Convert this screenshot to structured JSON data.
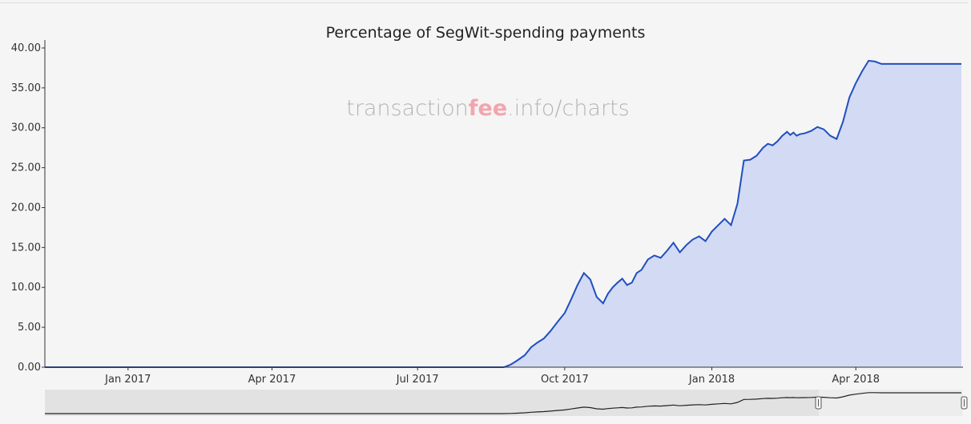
{
  "watermark": {
    "prefix": "transaction",
    "accent": "fee",
    "suffix": ".info/charts"
  },
  "colors": {
    "line": "#1f4fbf",
    "area": "#d3daf3",
    "accent": "#f2a5ae",
    "grid": "#dcdcdc"
  },
  "chart_data": {
    "type": "area",
    "title": "Percentage of SegWit-spending payments",
    "xlabel": "",
    "ylabel": "",
    "y_ticks": [
      "0.00",
      "5.00",
      "10.00",
      "15.00",
      "20.00",
      "25.00",
      "30.00",
      "35.00",
      "40.00"
    ],
    "ylim": [
      0,
      41
    ],
    "xlim": [
      "2016-11-10",
      "2018-06-07"
    ],
    "x_ticks": [
      {
        "date": "2017-01-01",
        "label": "Jan 2017"
      },
      {
        "date": "2017-04-01",
        "label": "Apr 2017"
      },
      {
        "date": "2017-07-01",
        "label": "Jul 2017"
      },
      {
        "date": "2017-10-01",
        "label": "Oct 2017"
      },
      {
        "date": "2018-01-01",
        "label": "Jan 2018"
      },
      {
        "date": "2018-04-01",
        "label": "Apr 2018"
      }
    ],
    "grid": false,
    "legend": "none",
    "series": [
      {
        "x": [
          "2016-11-10",
          "2017-01-01",
          "2017-04-01",
          "2017-07-01",
          "2017-08-24",
          "2017-08-28",
          "2017-09-01",
          "2017-09-06",
          "2017-09-10",
          "2017-09-14",
          "2017-09-18",
          "2017-09-22",
          "2017-09-27",
          "2017-10-01",
          "2017-10-05",
          "2017-10-09",
          "2017-10-13",
          "2017-10-17",
          "2017-10-21",
          "2017-10-25",
          "2017-10-28",
          "2017-10-31",
          "2017-11-03",
          "2017-11-06",
          "2017-11-09",
          "2017-11-12",
          "2017-11-15",
          "2017-11-18",
          "2017-11-22",
          "2017-11-26",
          "2017-11-30",
          "2017-12-04",
          "2017-12-08",
          "2017-12-12",
          "2017-12-16",
          "2017-12-20",
          "2017-12-24",
          "2017-12-28",
          "2018-01-01",
          "2018-01-05",
          "2018-01-09",
          "2018-01-13",
          "2018-01-17",
          "2018-01-21",
          "2018-01-25",
          "2018-01-29",
          "2018-02-02",
          "2018-02-05",
          "2018-02-08",
          "2018-02-11",
          "2018-02-14",
          "2018-02-17",
          "2018-02-19",
          "2018-02-21",
          "2018-02-23",
          "2018-02-25",
          "2018-02-28",
          "2018-03-04",
          "2018-03-08",
          "2018-03-12",
          "2018-03-16",
          "2018-03-20",
          "2018-03-24",
          "2018-03-28",
          "2018-04-01",
          "2018-04-05",
          "2018-04-09",
          "2018-04-13",
          "2018-04-17",
          "2018-04-21",
          "2018-04-25",
          "2018-04-29",
          "2018-05-03",
          "2018-05-07",
          "2018-05-11",
          "2018-05-14",
          "2018-05-17",
          "2018-05-20",
          "2018-05-23",
          "2018-05-26",
          "2018-05-29",
          "2018-06-01",
          "2018-06-04",
          "2018-06-06"
        ],
        "values": [
          0,
          0,
          0,
          0,
          0,
          0.3,
          0.8,
          1.5,
          2.5,
          3.1,
          3.6,
          4.5,
          5.8,
          6.8,
          8.5,
          10.3,
          11.8,
          11.0,
          8.8,
          8.0,
          9.2,
          10.0,
          10.6,
          11.1,
          10.3,
          10.6,
          11.8,
          12.2,
          13.5,
          14.0,
          13.7,
          14.6,
          15.6,
          14.4,
          15.3,
          16.0,
          16.4,
          15.8,
          17.0,
          17.8,
          18.6,
          17.8,
          20.5,
          25.9,
          26.0,
          26.5,
          27.5,
          28.0,
          27.8,
          28.3,
          29.0,
          29.5,
          29.1,
          29.4,
          29.0,
          29.2,
          29.3,
          29.6,
          30.1,
          29.8,
          29.0,
          28.6,
          30.8,
          33.8,
          35.6,
          37.1,
          38.4,
          38.3,
          38.0,
          38.0,
          38.0,
          38.0,
          38.0,
          38.0,
          38.0,
          38.0,
          38.0,
          38.0,
          38.0,
          38.0,
          38.0,
          38.0,
          38.0,
          38.0
        ]
      }
    ]
  }
}
